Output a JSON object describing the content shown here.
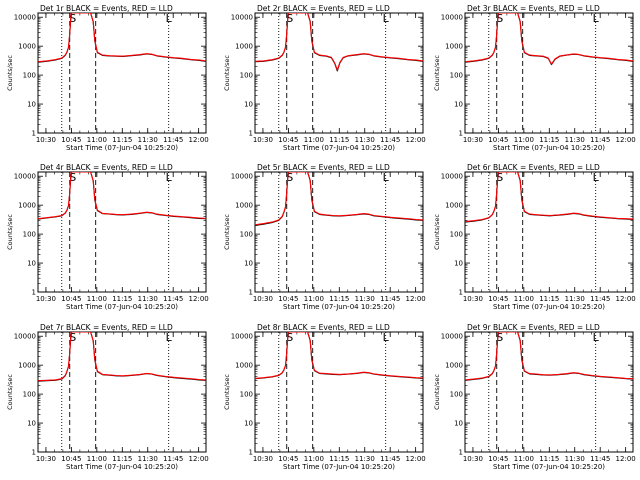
{
  "chart_data": {
    "type": "line",
    "grid": false,
    "xlabel": "Start Time (07-Jun-04 10:25:20)",
    "ylabel": "Counts/sec",
    "x_tick_labels": [
      "10:30",
      "10:45",
      "11:00",
      "11:15",
      "11:30",
      "11:45",
      "12:00"
    ],
    "x_tick_minutes": [
      4.67,
      19.67,
      34.67,
      49.67,
      64.67,
      79.67,
      94.67
    ],
    "xlim_minutes": [
      0,
      99
    ],
    "y_scale": "log",
    "y_tick_labels": [
      "1",
      "10",
      "100",
      "1000",
      "10000"
    ],
    "y_ticks": [
      1,
      10,
      100,
      1000,
      10000
    ],
    "ylim": [
      1,
      14000
    ],
    "series_colors": {
      "events": "#000000",
      "lld": "#ff0000"
    },
    "vertical_lines": [
      {
        "x_minute": 14.0,
        "style": "dotted"
      },
      {
        "x_minute": 18.7,
        "style": "dashed"
      },
      {
        "x_minute": 34.0,
        "style": "dashed"
      },
      {
        "x_minute": 77.0,
        "style": "dotted"
      }
    ],
    "markers": [
      {
        "label": "S",
        "x_minute": 20.5
      },
      {
        "label": "L",
        "x_minute": 77.0
      }
    ],
    "panels": [
      {
        "title": "Det 1r BLACK = Events, RED = LLD",
        "x": [
          0,
          5,
          10,
          14,
          16,
          17,
          18,
          18.7,
          19.5,
          21,
          23,
          27,
          31,
          32.5,
          33.5,
          35,
          38,
          42,
          46,
          50,
          55,
          60,
          64,
          67,
          70,
          75,
          80,
          85,
          90,
          95,
          99
        ],
        "events": [
          280,
          300,
          330,
          380,
          480,
          600,
          900,
          2500,
          14000,
          14000,
          14000,
          14000,
          14000,
          7000,
          1500,
          600,
          480,
          460,
          450,
          440,
          470,
          500,
          540,
          520,
          460,
          420,
          390,
          370,
          340,
          320,
          300
        ],
        "lld": [
          290,
          310,
          340,
          390,
          490,
          610,
          920,
          2600,
          14000,
          14000,
          14000,
          14000,
          14000,
          7200,
          1600,
          620,
          490,
          470,
          460,
          450,
          480,
          510,
          550,
          530,
          470,
          430,
          400,
          380,
          350,
          330,
          310
        ]
      },
      {
        "title": "Det 2r BLACK = Events, RED = LLD",
        "x": [
          0,
          5,
          10,
          14,
          16,
          17,
          18,
          18.7,
          19.5,
          21,
          23,
          27,
          31,
          32.5,
          33.5,
          35,
          38,
          42,
          45,
          47,
          48.5,
          50,
          52,
          55,
          60,
          64,
          67,
          70,
          75,
          80,
          85,
          90,
          95,
          99
        ],
        "events": [
          290,
          300,
          330,
          380,
          480,
          600,
          900,
          2500,
          14000,
          14000,
          14000,
          14000,
          14000,
          7000,
          1500,
          600,
          480,
          450,
          400,
          250,
          140,
          260,
          400,
          460,
          500,
          540,
          520,
          460,
          420,
          390,
          370,
          340,
          320,
          300
        ],
        "lld": [
          300,
          310,
          340,
          390,
          490,
          610,
          920,
          2600,
          14000,
          14000,
          14000,
          14000,
          14000,
          7200,
          1600,
          620,
          490,
          460,
          410,
          260,
          150,
          270,
          410,
          470,
          510,
          550,
          530,
          470,
          430,
          400,
          380,
          350,
          330,
          310
        ]
      },
      {
        "title": "Det 3r BLACK = Events, RED = LLD",
        "x": [
          0,
          5,
          10,
          14,
          16,
          17,
          18,
          18.7,
          19.5,
          21,
          23,
          27,
          31,
          32.5,
          33.5,
          35,
          38,
          42,
          46,
          49,
          51,
          53,
          56,
          60,
          64,
          67,
          70,
          75,
          80,
          85,
          90,
          95,
          99
        ],
        "events": [
          280,
          300,
          330,
          380,
          480,
          600,
          900,
          2500,
          14000,
          14000,
          14000,
          14000,
          14000,
          7000,
          1500,
          600,
          480,
          460,
          440,
          380,
          230,
          350,
          450,
          490,
          530,
          510,
          460,
          420,
          390,
          370,
          340,
          320,
          300
        ],
        "lld": [
          290,
          310,
          340,
          390,
          490,
          610,
          920,
          2600,
          14000,
          14000,
          14000,
          14000,
          14000,
          7200,
          1600,
          620,
          490,
          470,
          450,
          390,
          240,
          360,
          460,
          500,
          540,
          520,
          470,
          430,
          400,
          380,
          350,
          330,
          310
        ]
      },
      {
        "title": "Det 4r BLACK = Events, RED = LLD",
        "x": [
          0,
          5,
          10,
          14,
          16,
          17,
          18,
          18.7,
          19.5,
          21,
          23,
          27,
          31,
          32.5,
          33.5,
          35,
          38,
          42,
          46,
          50,
          55,
          60,
          64,
          67,
          70,
          75,
          80,
          85,
          90,
          95,
          99
        ],
        "events": [
          330,
          360,
          390,
          430,
          530,
          650,
          950,
          2500,
          14000,
          14000,
          14000,
          14000,
          14000,
          7000,
          1500,
          650,
          510,
          490,
          470,
          460,
          480,
          520,
          560,
          540,
          480,
          440,
          410,
          390,
          370,
          350,
          340
        ],
        "lld": [
          340,
          370,
          400,
          440,
          540,
          660,
          970,
          2600,
          14000,
          14000,
          14000,
          14000,
          14000,
          7200,
          1600,
          670,
          520,
          500,
          480,
          470,
          490,
          530,
          570,
          550,
          490,
          450,
          420,
          400,
          380,
          360,
          350
        ]
      },
      {
        "title": "Det 5r BLACK = Events, RED = LLD",
        "x": [
          0,
          5,
          10,
          14,
          16,
          17,
          18,
          18.7,
          19.5,
          21,
          23,
          27,
          31,
          32.5,
          33.5,
          35,
          38,
          42,
          46,
          50,
          55,
          60,
          64,
          67,
          70,
          75,
          80,
          85,
          90,
          95,
          99
        ],
        "events": [
          200,
          220,
          250,
          300,
          400,
          550,
          850,
          2500,
          14000,
          14000,
          14000,
          14000,
          14000,
          7000,
          1500,
          600,
          480,
          450,
          430,
          420,
          440,
          470,
          500,
          480,
          430,
          400,
          370,
          350,
          330,
          310,
          300
        ],
        "lld": [
          210,
          230,
          260,
          310,
          410,
          560,
          870,
          2600,
          14000,
          14000,
          14000,
          14000,
          14000,
          7200,
          1600,
          620,
          490,
          460,
          440,
          430,
          450,
          480,
          510,
          490,
          440,
          410,
          380,
          360,
          340,
          320,
          310
        ]
      },
      {
        "title": "Det 6r BLACK = Events, RED = LLD",
        "x": [
          0,
          5,
          10,
          14,
          16,
          17,
          18,
          18.7,
          19.5,
          21,
          23,
          27,
          31,
          32.5,
          33.5,
          35,
          38,
          42,
          46,
          50,
          55,
          60,
          64,
          67,
          70,
          75,
          80,
          85,
          90,
          95,
          99
        ],
        "events": [
          260,
          280,
          310,
          360,
          460,
          600,
          900,
          2500,
          14000,
          14000,
          14000,
          14000,
          14000,
          7000,
          1500,
          600,
          480,
          460,
          440,
          430,
          450,
          480,
          520,
          500,
          450,
          410,
          380,
          360,
          340,
          330,
          320
        ],
        "lld": [
          270,
          290,
          320,
          370,
          470,
          610,
          920,
          2600,
          14000,
          14000,
          14000,
          14000,
          14000,
          7200,
          1600,
          620,
          490,
          470,
          450,
          440,
          460,
          490,
          530,
          510,
          460,
          420,
          390,
          370,
          350,
          340,
          330
        ]
      },
      {
        "title": "Det 7r BLACK = Events, RED = LLD",
        "x": [
          0,
          5,
          10,
          14,
          16,
          17,
          18,
          18.7,
          19.5,
          21,
          23,
          27,
          31,
          32.5,
          33.5,
          35,
          38,
          42,
          46,
          50,
          55,
          60,
          64,
          67,
          70,
          75,
          80,
          85,
          90,
          95,
          99
        ],
        "events": [
          280,
          290,
          300,
          330,
          430,
          580,
          900,
          2500,
          14000,
          14000,
          14000,
          14000,
          14000,
          7000,
          1500,
          600,
          470,
          450,
          430,
          420,
          440,
          470,
          510,
          490,
          440,
          400,
          370,
          350,
          330,
          310,
          300
        ],
        "lld": [
          290,
          300,
          310,
          340,
          440,
          590,
          920,
          2600,
          14000,
          14000,
          14000,
          14000,
          14000,
          7200,
          1600,
          620,
          480,
          460,
          440,
          430,
          450,
          480,
          520,
          500,
          450,
          410,
          380,
          360,
          340,
          320,
          310
        ]
      },
      {
        "title": "Det 8r BLACK = Events, RED = LLD",
        "x": [
          0,
          5,
          10,
          14,
          16,
          17,
          18,
          18.7,
          19.5,
          21,
          23,
          27,
          31,
          32.5,
          33.5,
          35,
          38,
          42,
          46,
          50,
          55,
          60,
          64,
          67,
          70,
          75,
          80,
          85,
          90,
          95,
          99
        ],
        "events": [
          340,
          360,
          390,
          440,
          540,
          670,
          950,
          2500,
          14000,
          14000,
          14000,
          14000,
          14000,
          7000,
          1500,
          650,
          520,
          500,
          480,
          470,
          490,
          520,
          560,
          540,
          490,
          450,
          420,
          400,
          380,
          360,
          350
        ],
        "lld": [
          350,
          370,
          400,
          450,
          550,
          680,
          970,
          2600,
          14000,
          14000,
          14000,
          14000,
          14000,
          7200,
          1600,
          670,
          530,
          510,
          490,
          480,
          500,
          530,
          570,
          550,
          500,
          460,
          430,
          410,
          390,
          370,
          360
        ]
      },
      {
        "title": "Det 9r BLACK = Events, RED = LLD",
        "x": [
          0,
          5,
          10,
          14,
          16,
          17,
          18,
          18.7,
          19.5,
          21,
          23,
          27,
          31,
          32.5,
          33.5,
          35,
          38,
          42,
          46,
          50,
          55,
          60,
          64,
          67,
          70,
          75,
          80,
          85,
          90,
          95,
          99
        ],
        "events": [
          300,
          320,
          350,
          400,
          500,
          630,
          920,
          2500,
          14000,
          14000,
          14000,
          14000,
          14000,
          7000,
          1500,
          620,
          500,
          480,
          460,
          450,
          470,
          500,
          540,
          520,
          470,
          430,
          400,
          380,
          360,
          340,
          330
        ],
        "lld": [
          310,
          330,
          360,
          410,
          510,
          640,
          940,
          2600,
          14000,
          14000,
          14000,
          14000,
          14000,
          7200,
          1600,
          640,
          510,
          490,
          470,
          460,
          480,
          510,
          550,
          530,
          480,
          440,
          410,
          390,
          370,
          350,
          340
        ]
      }
    ]
  }
}
